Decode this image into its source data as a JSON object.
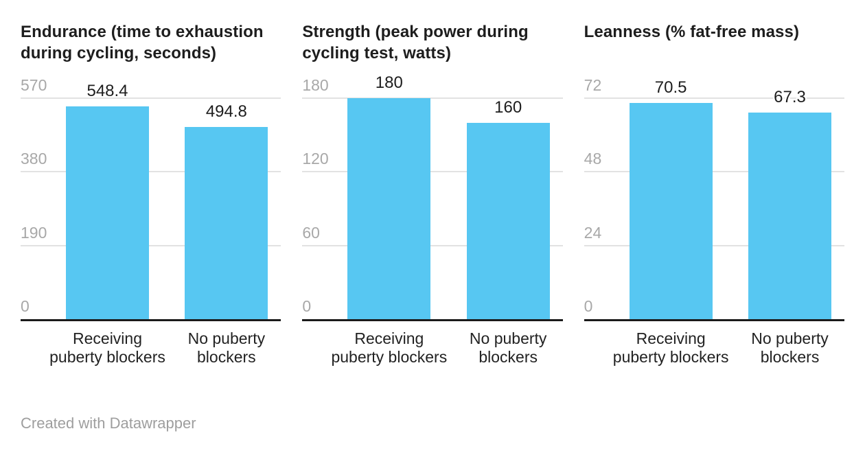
{
  "colors": {
    "bar": "#57c7f2",
    "title_text": "#1d1d1d",
    "tick_text": "#a8a8a8",
    "gridline": "#e2e2e2",
    "baseline": "#1a1a1a",
    "value_text": "#1d1d1d",
    "category_text": "#222222",
    "footer_text": "#9e9e9e",
    "background": "#ffffff"
  },
  "footer": {
    "text": "Created with Datawrapper"
  },
  "chart_data": [
    {
      "type": "bar",
      "title": "Endurance (time to exhaustion during cycling, seconds)",
      "categories": [
        "Receiving puberty blockers",
        "No puberty blockers"
      ],
      "values": [
        548.4,
        494.8
      ],
      "value_labels": [
        "548.4",
        "494.8"
      ],
      "yticks": [
        0,
        190,
        380,
        570
      ],
      "ylim": [
        0,
        570
      ],
      "grid": true,
      "legend_position": "none"
    },
    {
      "type": "bar",
      "title": "Strength (peak power during cycling test, watts)",
      "categories": [
        "Receiving puberty blockers",
        "No puberty blockers"
      ],
      "values": [
        180,
        160
      ],
      "value_labels": [
        "180",
        "160"
      ],
      "yticks": [
        0,
        60,
        120,
        180
      ],
      "ylim": [
        0,
        180
      ],
      "grid": true,
      "legend_position": "none"
    },
    {
      "type": "bar",
      "title": "Leanness (% fat-free mass)",
      "categories": [
        "Receiving puberty blockers",
        "No puberty blockers"
      ],
      "values": [
        70.5,
        67.3
      ],
      "value_labels": [
        "70.5",
        "67.3"
      ],
      "yticks": [
        0,
        24,
        48,
        72
      ],
      "ylim": [
        0,
        72
      ],
      "grid": true,
      "legend_position": "none"
    }
  ]
}
